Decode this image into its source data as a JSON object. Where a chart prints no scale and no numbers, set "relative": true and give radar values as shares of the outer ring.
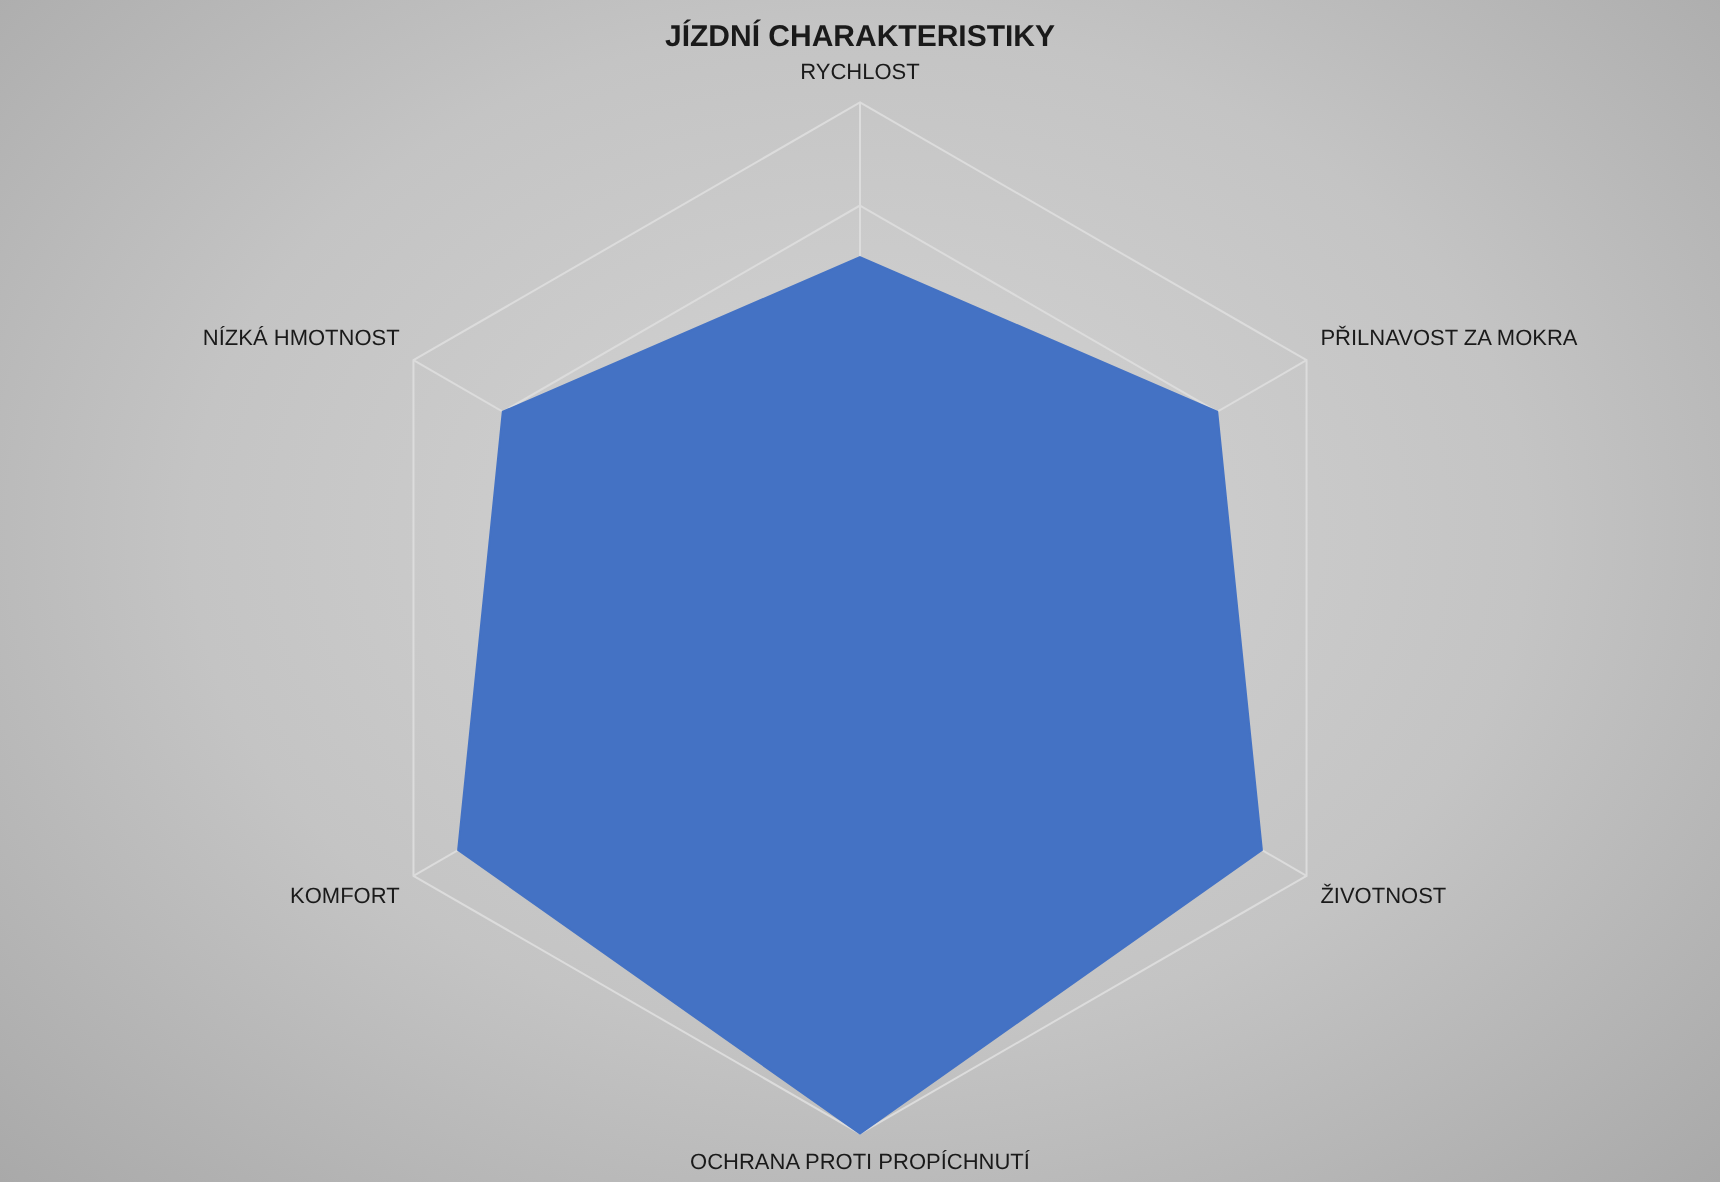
{
  "chart_data": {
    "type": "radar",
    "title": "JÍZDNÍ CHARAKTERISTIKY",
    "relative": true,
    "grid": true,
    "legend": false,
    "categories": [
      "RYCHLOST",
      "PŘILNAVOST ZA MOKRA",
      "ŽIVOTNOST",
      "OCHRANA PROTI PROPÍCHNUTÍ",
      "KOMFORT",
      "NÍZKÁ HMOTNOST"
    ],
    "series": [
      {
        "color": "#4472c4",
        "values": [
          0.7,
          0.8,
          0.9,
          1.0,
          0.9,
          0.8
        ]
      }
    ]
  }
}
